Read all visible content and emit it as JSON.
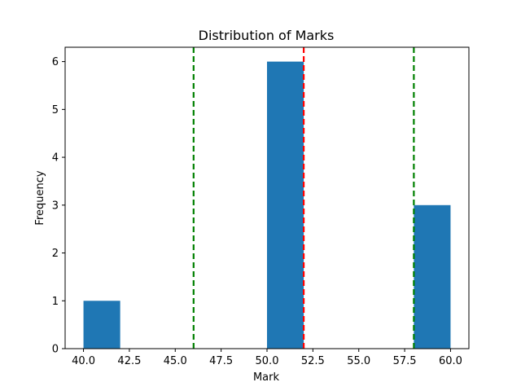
{
  "chart_data": {
    "type": "bar",
    "title": "Distribution of Marks",
    "xlabel": "Mark",
    "ylabel": "Frequency",
    "xlim": [
      39.0,
      61.0
    ],
    "ylim": [
      0,
      6.3
    ],
    "xticks": [
      40.0,
      42.5,
      45.0,
      47.5,
      50.0,
      52.5,
      55.0,
      57.5,
      60.0
    ],
    "xtick_labels": [
      "40.0",
      "42.5",
      "45.0",
      "47.5",
      "50.0",
      "52.5",
      "55.0",
      "57.5",
      "60.0"
    ],
    "yticks": [
      0,
      1,
      2,
      3,
      4,
      5,
      6
    ],
    "ytick_labels": [
      "0",
      "1",
      "2",
      "3",
      "4",
      "5",
      "6"
    ],
    "bins": [
      {
        "start": 40,
        "end": 42,
        "value": 1
      },
      {
        "start": 42,
        "end": 44,
        "value": 0
      },
      {
        "start": 44,
        "end": 46,
        "value": 0
      },
      {
        "start": 46,
        "end": 48,
        "value": 0
      },
      {
        "start": 48,
        "end": 50,
        "value": 0
      },
      {
        "start": 50,
        "end": 52,
        "value": 6
      },
      {
        "start": 52,
        "end": 54,
        "value": 0
      },
      {
        "start": 54,
        "end": 56,
        "value": 0
      },
      {
        "start": 56,
        "end": 58,
        "value": 0
      },
      {
        "start": 58,
        "end": 60,
        "value": 3
      }
    ],
    "bar_color": "#1f77b4",
    "reference_lines": [
      {
        "x": 46,
        "color": "#008000",
        "style": "dashed"
      },
      {
        "x": 52,
        "color": "#ff0000",
        "style": "dashed"
      },
      {
        "x": 58,
        "color": "#008000",
        "style": "dashed"
      }
    ],
    "grid": false,
    "legend": "none"
  }
}
